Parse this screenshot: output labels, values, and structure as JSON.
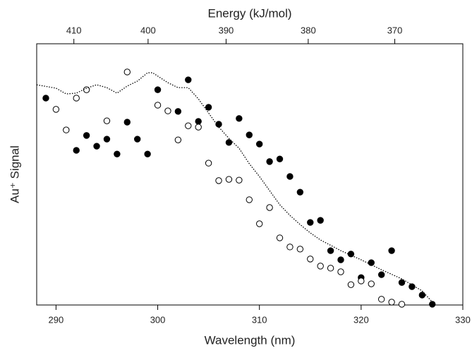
{
  "chart_data": {
    "type": "scatter",
    "x_label": "Wavelength (nm)",
    "x2_label": "Energy  (kJ/mol)",
    "y_label": "Au⁺ Signal",
    "xlim": [
      288.1,
      330
    ],
    "xticks": [
      290,
      300,
      310,
      320,
      330
    ],
    "x2lim": [
      415.2,
      362.5
    ],
    "x2scale": "reciprocal",
    "x2ticks": [
      410,
      400,
      390,
      380,
      370
    ],
    "ylim": [
      0,
      100
    ],
    "series": [
      {
        "style": "filled",
        "color": "#000000",
        "x": [
          289,
          293,
          292,
          294,
          295,
          296,
          297,
          298,
          299,
          300,
          302,
          303,
          304,
          305,
          306,
          307,
          308,
          309,
          310,
          311,
          312,
          313,
          314,
          315,
          316,
          317,
          318,
          319,
          320,
          321,
          322,
          323,
          324,
          325,
          326,
          327
        ],
        "values": [
          79.2,
          64.9,
          59.2,
          60.8,
          63.5,
          57.8,
          70.0,
          63.5,
          57.8,
          82.4,
          74.1,
          86.2,
          70.3,
          75.7,
          69.2,
          62.2,
          71.4,
          65.1,
          61.6,
          54.9,
          55.9,
          49.2,
          43.2,
          31.6,
          32.4,
          20.8,
          17.3,
          19.5,
          10.5,
          16.2,
          11.6,
          20.8,
          8.6,
          7.0,
          3.8,
          0.3
        ]
      },
      {
        "style": "open",
        "color": "#000000",
        "x": [
          290,
          291,
          292,
          293,
          295,
          297,
          300,
          301,
          302,
          303,
          304,
          305,
          306,
          307,
          308,
          309,
          310,
          311,
          312,
          313,
          314,
          315,
          316,
          317,
          318,
          319,
          320,
          321,
          322,
          323,
          324
        ],
        "values": [
          74.9,
          67.0,
          79.2,
          82.4,
          70.5,
          89.2,
          76.5,
          74.3,
          63.2,
          68.6,
          68.1,
          54.3,
          47.6,
          48.1,
          47.8,
          40.3,
          31.1,
          37.3,
          25.7,
          22.2,
          21.4,
          17.6,
          14.9,
          14.1,
          12.7,
          7.8,
          9.2,
          8.1,
          2.2,
          1.1,
          0.3
        ]
      },
      {
        "style": "dotted-line",
        "color": "#000000",
        "x": [
          288.1,
          290,
          291,
          292,
          293,
          294,
          295,
          296,
          297,
          298,
          299,
          299.5,
          301,
          302,
          303,
          304,
          305,
          306,
          307,
          308,
          309,
          310,
          311,
          312,
          313,
          314,
          315,
          316,
          318,
          320,
          322,
          324,
          326,
          327
        ],
        "values": [
          84.3,
          83.0,
          80.8,
          81.1,
          83.0,
          84.3,
          83.2,
          81.1,
          83.8,
          85.7,
          88.9,
          88.9,
          85.1,
          83.2,
          83.2,
          78.9,
          73.5,
          68.1,
          63.8,
          60.0,
          54.1,
          49.2,
          43.8,
          38.4,
          34.3,
          30.8,
          27.6,
          24.9,
          20.8,
          17.3,
          13.5,
          10.0,
          5.4,
          1.1
        ]
      }
    ]
  }
}
